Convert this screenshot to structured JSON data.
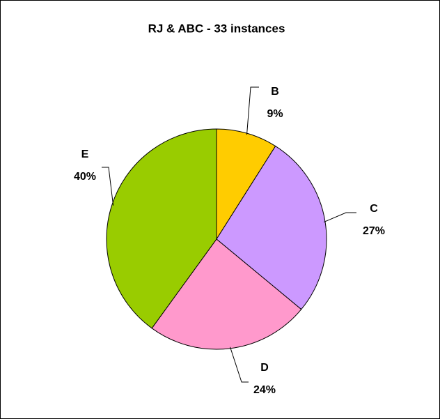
{
  "chart_data": {
    "type": "pie",
    "title": "RJ & ABC - 33 instances",
    "categories": [
      "B",
      "C",
      "D",
      "E"
    ],
    "values": [
      9,
      27,
      24,
      40
    ],
    "value_labels": [
      "9%",
      "27%",
      "24%",
      "40%"
    ],
    "colors": [
      "#ffcc00",
      "#cc99ff",
      "#ff99cc",
      "#99cc00"
    ]
  }
}
